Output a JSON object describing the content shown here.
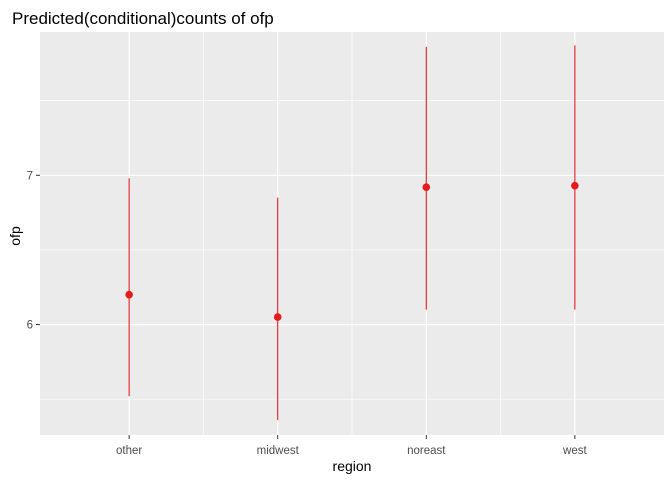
{
  "chart_data": {
    "type": "scatter",
    "title": "Predicted(conditional)counts of ofp",
    "xlabel": "region",
    "ylabel": "ofp",
    "categories": [
      "other",
      "midwest",
      "noreast",
      "west"
    ],
    "series": [
      {
        "values": [
          6.2,
          6.05,
          6.92,
          6.93
        ],
        "lower": [
          5.52,
          5.36,
          6.1,
          6.1
        ],
        "upper": [
          6.98,
          6.85,
          7.86,
          7.87
        ]
      }
    ],
    "y_ticks": [
      6,
      7
    ],
    "y_tick_labels": [
      "6",
      "7"
    ],
    "ylim": [
      5.26,
      7.96
    ],
    "grid": true,
    "legend": "none",
    "colors": {
      "panel": "#ebebeb",
      "grid_major": "#ffffff",
      "point": "#e41a1c",
      "tick_text": "#4d4d4d",
      "tick_mark": "#333333"
    }
  }
}
